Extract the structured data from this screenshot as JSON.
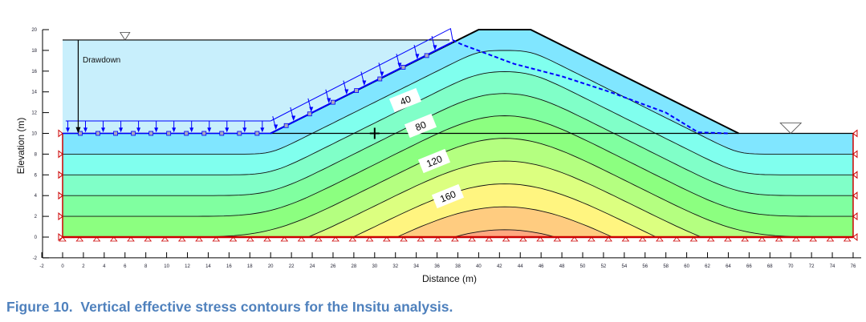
{
  "figure": {
    "caption": "Figure 10.  Vertical effective stress contours for the Insitu analysis.",
    "x_axis_label": "Distance (m)",
    "y_axis_label": "Elevation (m)",
    "x_ticks": [
      "-2",
      "0",
      "2",
      "4",
      "6",
      "8",
      "10",
      "12",
      "14",
      "16",
      "18",
      "20",
      "22",
      "24",
      "26",
      "28",
      "30",
      "32",
      "34",
      "36",
      "38",
      "40",
      "42",
      "44",
      "46",
      "48",
      "50",
      "52",
      "54",
      "56",
      "58",
      "60",
      "62",
      "64",
      "66",
      "68",
      "70",
      "72",
      "74",
      "76"
    ],
    "y_ticks": [
      "-2",
      "0",
      "2",
      "4",
      "6",
      "8",
      "10",
      "12",
      "14",
      "16",
      "18",
      "20"
    ],
    "annotation": "Drawdown",
    "contour_labels": [
      "40",
      "80",
      "120",
      "160"
    ],
    "contour_interval": 20,
    "contour_levels": [
      20,
      40,
      60,
      80,
      100,
      120,
      140,
      160,
      180
    ],
    "band_colors": [
      "#80e6ff",
      "#80ffee",
      "#80ffc8",
      "#80ffa0",
      "#8cff80",
      "#b4ff80",
      "#dcff80",
      "#fff580",
      "#ffcc80",
      "#ffa880",
      "#ff8080"
    ],
    "caption_color": "#4f81bd",
    "geometry_m": {
      "surface": [
        [
          0,
          10
        ],
        [
          20,
          10
        ],
        [
          40,
          20
        ],
        [
          45,
          20
        ],
        [
          65,
          10
        ],
        [
          76,
          10
        ]
      ],
      "reservoir_level": 19,
      "reservoir_extent": 37.2,
      "tailwater_level": 10,
      "phreatic": [
        [
          37.5,
          19
        ],
        [
          38.3,
          18.6
        ],
        [
          43.4,
          16.7
        ],
        [
          48,
          15.5
        ],
        [
          52.6,
          14
        ],
        [
          58,
          12
        ],
        [
          61.1,
          10.1
        ],
        [
          64,
          10
        ]
      ]
    }
  }
}
